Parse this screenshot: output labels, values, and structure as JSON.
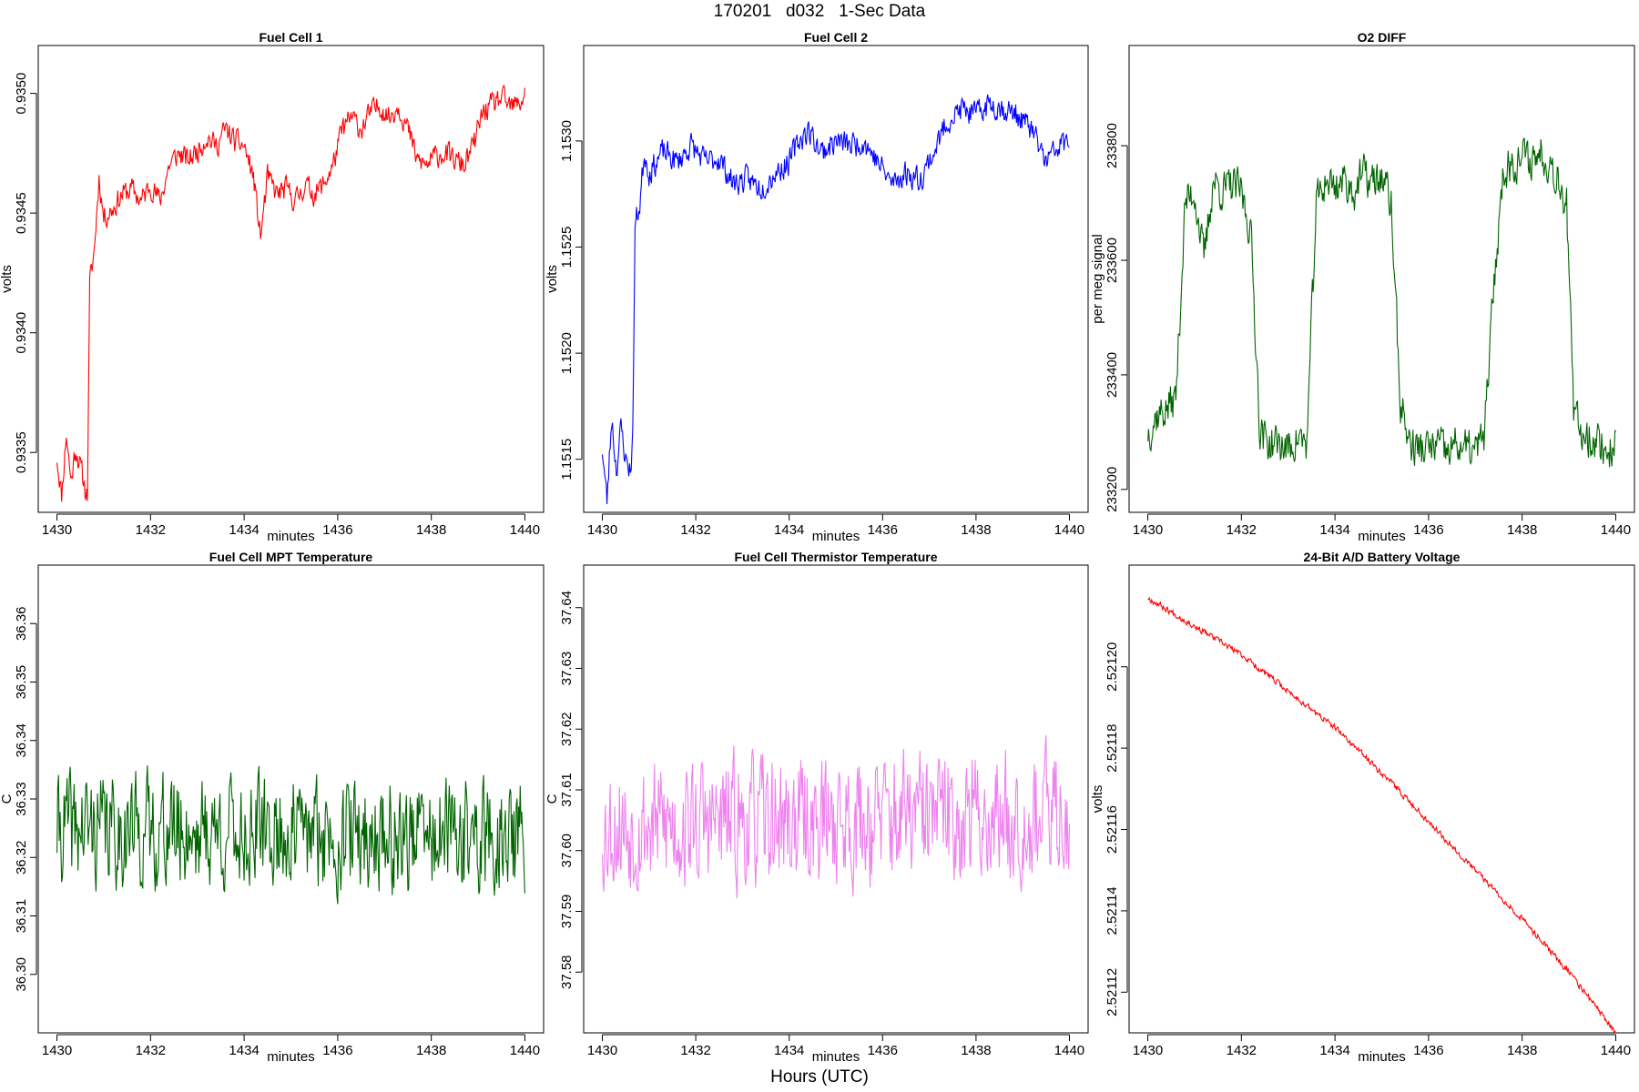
{
  "page": {
    "title": "170201   d032   1-Sec Data",
    "footer": "Hours (UTC)"
  },
  "chart_data": [
    {
      "type": "line",
      "title": "Fuel Cell 1",
      "xlabel": "minutes",
      "ylabel": "volts",
      "color": "#ff0000",
      "xlim": [
        1429.6,
        1440.4
      ],
      "ylim": [
        0.93325,
        0.9352
      ],
      "xticks": [
        1430,
        1432,
        1434,
        1436,
        1438,
        1440
      ],
      "yticks": [
        0.9335,
        0.934,
        0.9345,
        0.935
      ],
      "ytick_labels": [
        "0.9335",
        "0.9340",
        "0.9345",
        "0.9350"
      ],
      "trace": [
        [
          1430.0,
          0.93348
        ],
        [
          1430.1,
          0.93332
        ],
        [
          1430.2,
          0.93358
        ],
        [
          1430.3,
          0.93338
        ],
        [
          1430.4,
          0.93352
        ],
        [
          1430.5,
          0.93344
        ],
        [
          1430.6,
          0.93335
        ],
        [
          1430.65,
          0.93332
        ],
        [
          1430.7,
          0.9342
        ],
        [
          1430.8,
          0.93435
        ],
        [
          1430.9,
          0.93465
        ],
        [
          1431.0,
          0.93448
        ],
        [
          1431.2,
          0.93452
        ],
        [
          1431.4,
          0.93458
        ],
        [
          1431.6,
          0.9346
        ],
        [
          1431.8,
          0.93455
        ],
        [
          1432.0,
          0.93462
        ],
        [
          1432.2,
          0.93455
        ],
        [
          1432.4,
          0.9347
        ],
        [
          1432.6,
          0.93475
        ],
        [
          1432.8,
          0.93472
        ],
        [
          1433.0,
          0.93476
        ],
        [
          1433.2,
          0.93482
        ],
        [
          1433.4,
          0.93478
        ],
        [
          1433.6,
          0.93485
        ],
        [
          1433.8,
          0.9348
        ],
        [
          1434.0,
          0.93478
        ],
        [
          1434.2,
          0.93465
        ],
        [
          1434.35,
          0.9344
        ],
        [
          1434.5,
          0.93465
        ],
        [
          1434.7,
          0.93458
        ],
        [
          1434.9,
          0.9346
        ],
        [
          1435.1,
          0.93455
        ],
        [
          1435.3,
          0.93462
        ],
        [
          1435.5,
          0.93458
        ],
        [
          1435.7,
          0.93462
        ],
        [
          1435.9,
          0.9347
        ],
        [
          1436.1,
          0.93485
        ],
        [
          1436.3,
          0.9349
        ],
        [
          1436.5,
          0.93485
        ],
        [
          1436.7,
          0.93492
        ],
        [
          1436.9,
          0.93495
        ],
        [
          1437.1,
          0.9349
        ],
        [
          1437.3,
          0.93495
        ],
        [
          1437.5,
          0.93485
        ],
        [
          1437.7,
          0.93472
        ],
        [
          1437.9,
          0.9347
        ],
        [
          1438.1,
          0.93474
        ],
        [
          1438.3,
          0.93475
        ],
        [
          1438.5,
          0.93472
        ],
        [
          1438.7,
          0.9347
        ],
        [
          1438.9,
          0.93478
        ],
        [
          1439.1,
          0.93492
        ],
        [
          1439.3,
          0.93495
        ],
        [
          1439.5,
          0.93498
        ],
        [
          1439.7,
          0.93494
        ],
        [
          1439.9,
          0.93496
        ],
        [
          1440.0,
          0.935
        ]
      ],
      "noise": 4.5e-05,
      "seed": 11
    },
    {
      "type": "line",
      "title": "Fuel Cell 2",
      "xlabel": "minutes",
      "ylabel": "volts",
      "color": "#0000ff",
      "xlim": [
        1429.6,
        1440.4
      ],
      "ylim": [
        1.15125,
        1.15345
      ],
      "xticks": [
        1430,
        1432,
        1434,
        1436,
        1438,
        1440
      ],
      "yticks": [
        1.1515,
        1.152,
        1.1525,
        1.153
      ],
      "ytick_labels": [
        "1.1515",
        "1.1520",
        "1.1525",
        "1.1530"
      ],
      "trace": [
        [
          1430.0,
          1.15155
        ],
        [
          1430.1,
          1.1513
        ],
        [
          1430.2,
          1.1517
        ],
        [
          1430.3,
          1.15145
        ],
        [
          1430.4,
          1.15165
        ],
        [
          1430.5,
          1.1515
        ],
        [
          1430.6,
          1.15145
        ],
        [
          1430.65,
          1.1516
        ],
        [
          1430.7,
          1.1526
        ],
        [
          1430.8,
          1.1527
        ],
        [
          1430.9,
          1.15295
        ],
        [
          1431.0,
          1.15285
        ],
        [
          1431.3,
          1.15295
        ],
        [
          1431.6,
          1.1529
        ],
        [
          1431.9,
          1.15298
        ],
        [
          1432.2,
          1.1529
        ],
        [
          1432.5,
          1.15292
        ],
        [
          1432.8,
          1.1528
        ],
        [
          1433.1,
          1.15282
        ],
        [
          1433.4,
          1.15278
        ],
        [
          1433.7,
          1.15285
        ],
        [
          1434.0,
          1.1529
        ],
        [
          1434.2,
          1.153
        ],
        [
          1434.4,
          1.15305
        ],
        [
          1434.7,
          1.15295
        ],
        [
          1435.0,
          1.153
        ],
        [
          1435.3,
          1.15298
        ],
        [
          1435.6,
          1.153
        ],
        [
          1435.9,
          1.1529
        ],
        [
          1436.2,
          1.1528
        ],
        [
          1436.5,
          1.15285
        ],
        [
          1436.8,
          1.15282
        ],
        [
          1437.1,
          1.15295
        ],
        [
          1437.4,
          1.1531
        ],
        [
          1437.7,
          1.15315
        ],
        [
          1438.0,
          1.15312
        ],
        [
          1438.3,
          1.15318
        ],
        [
          1438.6,
          1.15315
        ],
        [
          1438.9,
          1.15312
        ],
        [
          1439.2,
          1.15305
        ],
        [
          1439.5,
          1.1529
        ],
        [
          1439.8,
          1.15298
        ],
        [
          1440.0,
          1.153
        ]
      ],
      "noise": 5.5e-05,
      "seed": 23
    },
    {
      "type": "line",
      "title": "O2 DIFF",
      "xlabel": "minutes",
      "ylabel": "per meg signal",
      "color": "#006400",
      "xlim": [
        1429.6,
        1440.4
      ],
      "ylim": [
        233160,
        233975
      ],
      "xticks": [
        1430,
        1432,
        1434,
        1436,
        1438,
        1440
      ],
      "yticks": [
        233200,
        233400,
        233600,
        233800
      ],
      "ytick_labels": [
        "233200",
        "233400",
        "233600",
        "233800"
      ],
      "trace": [
        [
          1430.0,
          233300
        ],
        [
          1430.2,
          233330
        ],
        [
          1430.4,
          233340
        ],
        [
          1430.6,
          233360
        ],
        [
          1430.8,
          233700
        ],
        [
          1431.0,
          233720
        ],
        [
          1431.2,
          233600
        ],
        [
          1431.4,
          233740
        ],
        [
          1431.6,
          233720
        ],
        [
          1431.8,
          233730
        ],
        [
          1432.0,
          233720
        ],
        [
          1432.2,
          233650
        ],
        [
          1432.4,
          233300
        ],
        [
          1432.6,
          233280
        ],
        [
          1432.8,
          233280
        ],
        [
          1433.0,
          233270
        ],
        [
          1433.2,
          233290
        ],
        [
          1433.4,
          233280
        ],
        [
          1433.6,
          233700
        ],
        [
          1433.8,
          233740
        ],
        [
          1434.0,
          233730
        ],
        [
          1434.2,
          233740
        ],
        [
          1434.4,
          233720
        ],
        [
          1434.6,
          233750
        ],
        [
          1434.8,
          233735
        ],
        [
          1435.0,
          233745
        ],
        [
          1435.2,
          233700
        ],
        [
          1435.4,
          233350
        ],
        [
          1435.6,
          233280
        ],
        [
          1435.8,
          233270
        ],
        [
          1436.0,
          233270
        ],
        [
          1436.2,
          233280
        ],
        [
          1436.4,
          233260
        ],
        [
          1436.6,
          233280
        ],
        [
          1436.8,
          233270
        ],
        [
          1437.0,
          233265
        ],
        [
          1437.2,
          233300
        ],
        [
          1437.4,
          233560
        ],
        [
          1437.6,
          233760
        ],
        [
          1437.8,
          233770
        ],
        [
          1438.0,
          233780
        ],
        [
          1438.2,
          233775
        ],
        [
          1438.4,
          233790
        ],
        [
          1438.6,
          233770
        ],
        [
          1438.8,
          233740
        ],
        [
          1438.95,
          233700
        ],
        [
          1439.1,
          233330
        ],
        [
          1439.3,
          233300
        ],
        [
          1439.5,
          233290
        ],
        [
          1439.7,
          233280
        ],
        [
          1439.85,
          233260
        ],
        [
          1440.0,
          233290
        ]
      ],
      "noise": 32,
      "seed": 37
    },
    {
      "type": "line",
      "title": "Fuel Cell MPT Temperature",
      "xlabel": "minutes",
      "ylabel": "C",
      "color": "#006400",
      "xlim": [
        1429.6,
        1440.4
      ],
      "ylim": [
        36.29,
        36.37
      ],
      "xticks": [
        1430,
        1432,
        1434,
        1436,
        1438,
        1440
      ],
      "yticks": [
        36.3,
        36.31,
        36.32,
        36.33,
        36.34,
        36.35,
        36.36
      ],
      "ytick_labels": [
        "36.30",
        "36.31",
        "36.32",
        "36.33",
        "36.34",
        "36.35",
        "36.36"
      ],
      "trace": [
        [
          1430.0,
          36.325
        ],
        [
          1440.0,
          36.323
        ]
      ],
      "noise": 0.0085,
      "seed": 41
    },
    {
      "type": "line",
      "title": "Fuel Cell Thermistor Temperature",
      "xlabel": "minutes",
      "ylabel": "C",
      "color": "#ee82ee",
      "xlim": [
        1429.6,
        1440.4
      ],
      "ylim": [
        37.57,
        37.647
      ],
      "xticks": [
        1430,
        1432,
        1434,
        1436,
        1438,
        1440
      ],
      "yticks": [
        37.58,
        37.59,
        37.6,
        37.61,
        37.62,
        37.63,
        37.64
      ],
      "ytick_labels": [
        "37.58",
        "37.59",
        "37.60",
        "37.61",
        "37.62",
        "37.63",
        "37.64"
      ],
      "trace": [
        [
          1430.0,
          37.604
        ],
        [
          1440.0,
          37.606
        ]
      ],
      "noise": 0.0095,
      "seed": 53
    },
    {
      "type": "line",
      "title": "24-Bit A/D Battery Voltage",
      "xlabel": "minutes",
      "ylabel": "volts",
      "color": "#ff0000",
      "xlim": [
        1429.6,
        1440.4
      ],
      "ylim": [
        2.52111,
        2.521225
      ],
      "xticks": [
        1430,
        1432,
        1434,
        1436,
        1438,
        1440
      ],
      "yticks": [
        2.52112,
        2.52114,
        2.52116,
        2.52118,
        2.5212
      ],
      "ytick_labels": [
        "2.52112",
        "2.52114",
        "2.52116",
        "2.52118",
        "2.52120"
      ],
      "trace": [
        [
          1430.0,
          2.521217
        ],
        [
          1431.0,
          2.52121
        ],
        [
          1432.0,
          2.521203
        ],
        [
          1433.0,
          2.521194
        ],
        [
          1434.0,
          2.521185
        ],
        [
          1435.0,
          2.521174
        ],
        [
          1436.0,
          2.521162
        ],
        [
          1437.0,
          2.52115
        ],
        [
          1438.0,
          2.521138
        ],
        [
          1439.0,
          2.521125
        ],
        [
          1440.0,
          2.52111
        ]
      ],
      "noise": 7e-07,
      "seed": 67
    }
  ]
}
